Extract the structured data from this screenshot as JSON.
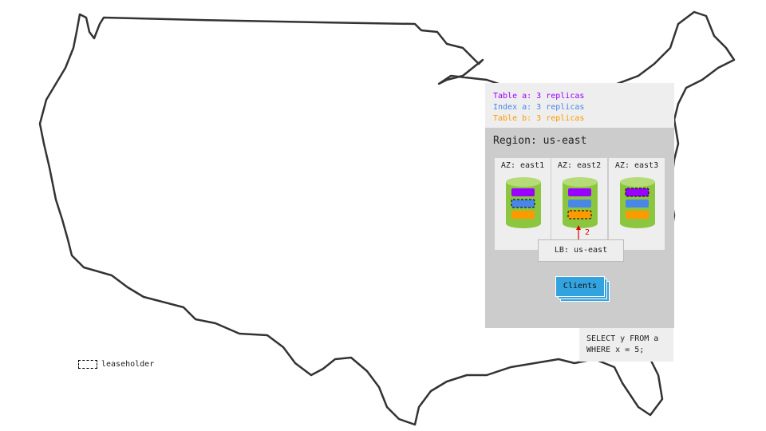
{
  "legend": {
    "items": [
      {
        "label": "Table a: 3 replicas",
        "color": "#9900ff"
      },
      {
        "label": "Index a: 3 replicas",
        "color": "#4a86e8"
      },
      {
        "label": "Table b: 3 replicas",
        "color": "#ff9900"
      }
    ]
  },
  "region": {
    "title": "Region: us-east",
    "zones": [
      {
        "label": "AZ: east1",
        "leaseholder": "Index a"
      },
      {
        "label": "AZ: east2",
        "leaseholder": "Table b"
      },
      {
        "label": "AZ: east3",
        "leaseholder": "Table a"
      }
    ],
    "arrow_label": "2",
    "lb_label": "LB: us-east",
    "clients_label": "Clients"
  },
  "query": {
    "line1": "SELECT y FROM a",
    "line2": "WHERE x = 5;"
  },
  "leaseholder_legend": {
    "label": "leaseholder"
  },
  "colors": {
    "cylinder": "#8cc63f",
    "cylinder_top": "#b5dc78",
    "arrow": "#e00000",
    "clients": "#33a3e0"
  }
}
